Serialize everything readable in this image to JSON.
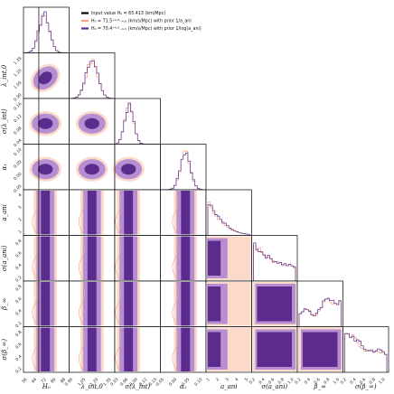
{
  "chart_data": {
    "type": "corner",
    "parameters": [
      {
        "key": "H0",
        "label": "H_0",
        "ticks": [
          "56",
          "64",
          "72",
          "80",
          "88"
        ],
        "range": [
          52,
          92
        ]
      },
      {
        "key": "lam",
        "label": "λ_ref,0",
        "ticks": [
          "0.90",
          "1.05",
          "1.20",
          "1.35"
        ],
        "range": [
          0.84,
          1.4
        ]
      },
      {
        "key": "sig_lam",
        "label": "σ(λ_ref)",
        "ticks": [
          "0.03",
          "0.06",
          "0.09",
          "0.12",
          "0.15"
        ],
        "range": [
          0.0,
          0.16
        ]
      },
      {
        "key": "alpha",
        "label": "α_1",
        "ticks": [
          "-0.05",
          "0.00",
          "0.05",
          "0.10"
        ],
        "range": [
          -0.08,
          0.12
        ]
      },
      {
        "key": "a_ani",
        "label": "a_ani",
        "ticks": [
          "1",
          "2",
          "3",
          "4",
          "5"
        ],
        "range": [
          0.3,
          5.2
        ]
      },
      {
        "key": "sig_a",
        "label": "σ(a_ani)",
        "ticks": [
          "0.2",
          "0.4",
          "0.6",
          "0.8",
          "1.0"
        ],
        "range": [
          0.0,
          1.05
        ]
      },
      {
        "key": "beta",
        "label": "β_∞",
        "ticks": [
          "0.2",
          "0.4",
          "0.6",
          "0.8",
          "1.0"
        ],
        "range": [
          0.0,
          1.05
        ]
      },
      {
        "key": "sig_b",
        "label": "σ(β_∞)",
        "ticks": [
          "0.2",
          "0.4",
          "0.6",
          "0.8",
          "1.0"
        ],
        "range": [
          0.0,
          1.05
        ]
      }
    ],
    "y_tick_labels": {
      "lam": [
        "1.35",
        "1.20",
        "1.05",
        "0.90"
      ],
      "sig_lam": [
        "0.16",
        "0.12",
        "0.08",
        "0.04"
      ],
      "alpha": [
        "0.10",
        "0.05",
        "0.00",
        "-0.05"
      ],
      "a_ani": [
        "4",
        "3",
        "2",
        "1"
      ],
      "sig_a": [
        "0.8",
        "0.6",
        "0.4",
        "0.2"
      ],
      "beta": [
        "0.8",
        "0.6",
        "0.4",
        "0.2"
      ],
      "sig_b": [
        "0.8",
        "0.6",
        "0.4",
        "0.2"
      ]
    },
    "x_axis_labels": [
      "H₀",
      "λ_int,0",
      "σ(λ_int)",
      "α₁",
      "a_ani",
      "σ(a_ani)",
      "β_∞",
      "σ(β_∞)"
    ],
    "y_axis_labels": [
      "",
      "λ_int,0",
      "σ(λ_int)",
      "α₁",
      "a_ani",
      "σ(a_ani)",
      "β_∞",
      "σ(β_∞)"
    ],
    "truth": {
      "H0": 65.413
    },
    "series": [
      {
        "name": "H₀ = 71.5⁺⁴·⁸₋₄.₆ (km/s/Mpc) with prior 1/a_ani",
        "color": "#f4a582",
        "fill": "#fbd3c0"
      },
      {
        "name": "H₀ = 70.4⁺⁴·⁹₋₄.₅ (km/s/Mpc) with prior 1/log(a_ani)",
        "color": "#5b2c8e",
        "fill": "#7a3fa6"
      }
    ],
    "legend": [
      {
        "name": "Input value H₀ = 65.413 (km/Mpc)",
        "color": "#000000"
      },
      {
        "name": "H₀ = 71.5⁺⁴·⁸₋₄.₆ (km/s/Mpc) with prior 1/a_ani",
        "color": "#f4a582"
      },
      {
        "name": "H₀ = 70.4⁺⁴·⁹₋₄.₅ (km/s/Mpc) with prior 1/log(a_ani)",
        "color": "#5b2c8e"
      }
    ],
    "legend_position": "top-right"
  },
  "colors": {
    "series1_line": "#f4a582",
    "series1_fill": "#fbd3c0",
    "series2_line": "#5b2c8e",
    "series2_fill_outer": "#b58fd1",
    "series2_fill_inner": "#5b2c8e"
  }
}
